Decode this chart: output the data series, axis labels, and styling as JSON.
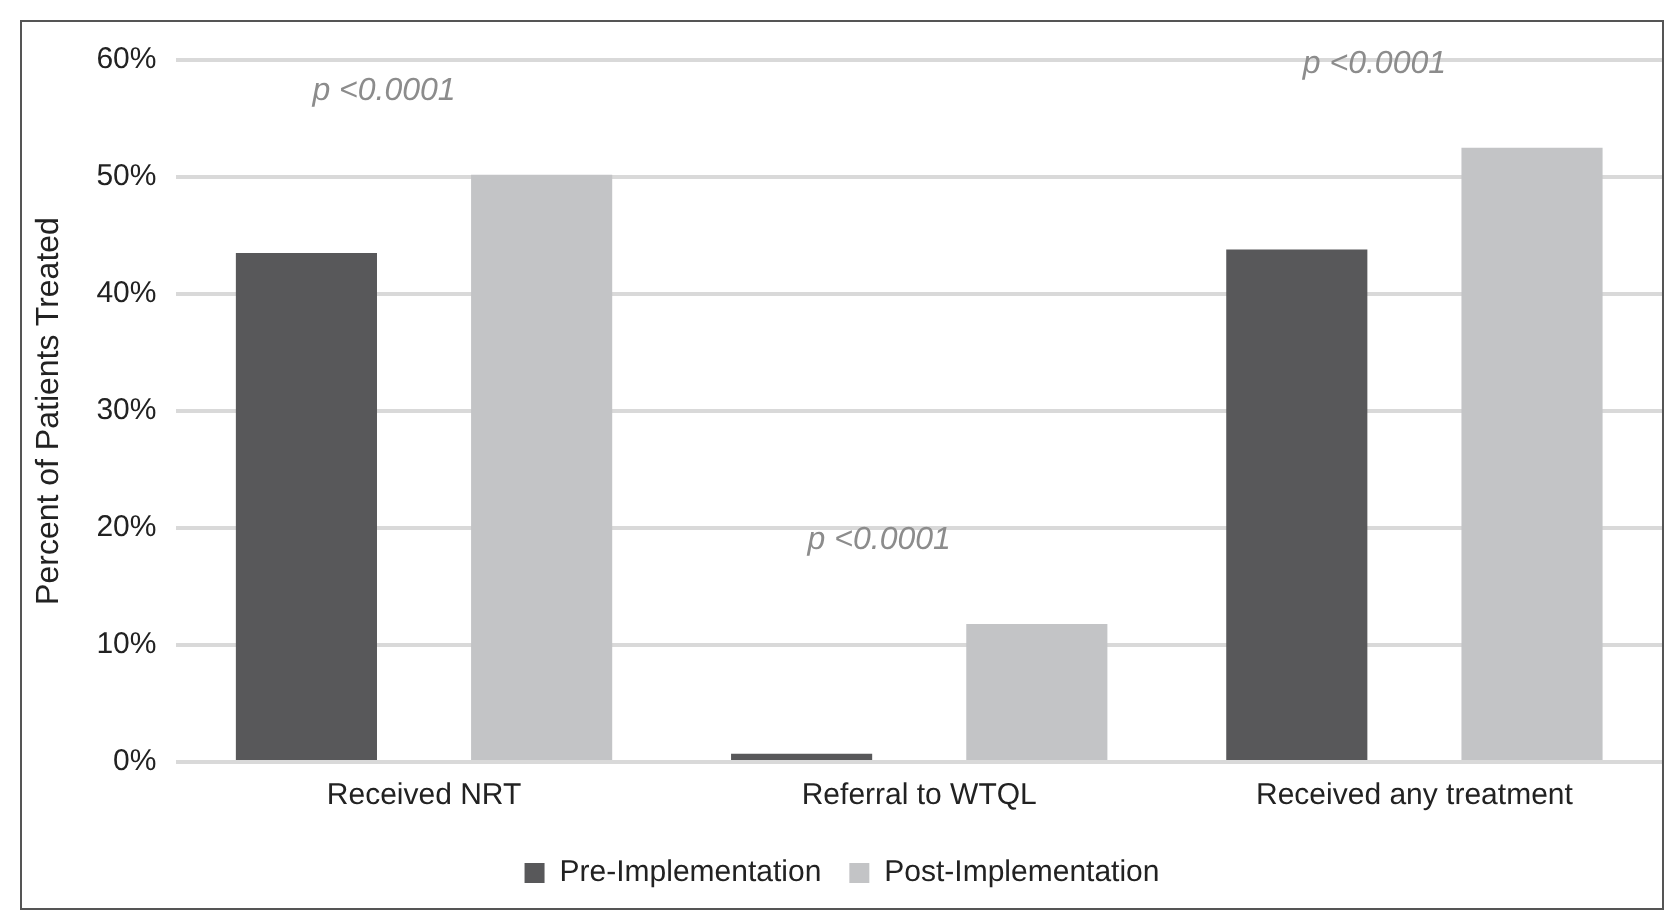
{
  "chart_data": {
    "type": "bar",
    "ylabel": "Percent of Patients Treated",
    "categories": [
      "Received NRT",
      "Referral to WTQL",
      "Received any treatment"
    ],
    "series": [
      {
        "name": "Pre-Implementation",
        "color": "#58585a",
        "values": [
          43.5,
          0.7,
          43.8
        ]
      },
      {
        "name": "Post-Implementation",
        "color": "#c3c4c6",
        "values": [
          50.2,
          11.8,
          52.5
        ]
      }
    ],
    "ylim": [
      0,
      60
    ],
    "yticks": [
      {
        "value": 0,
        "label": "0%"
      },
      {
        "value": 10,
        "label": "10%"
      },
      {
        "value": 20,
        "label": "20%"
      },
      {
        "value": 30,
        "label": "30%"
      },
      {
        "value": 40,
        "label": "40%"
      },
      {
        "value": 50,
        "label": "50%"
      },
      {
        "value": 60,
        "label": "60%"
      }
    ],
    "grid": "y",
    "legend": "bottom",
    "annotations": [
      "p <0.0001",
      "p <0.0001",
      "p <0.0001"
    ]
  }
}
